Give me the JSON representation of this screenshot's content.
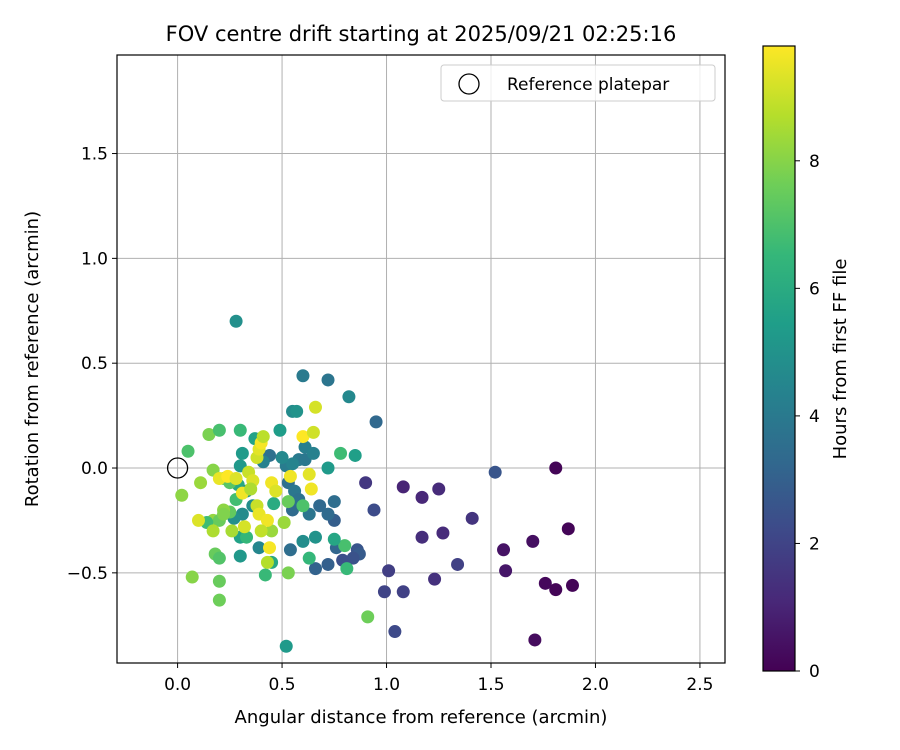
{
  "chart_data": {
    "type": "scatter",
    "title": "FOV centre drift starting at 2025/09/21 02:25:16",
    "xlabel": "Angular distance from reference (arcmin)",
    "ylabel": "Rotation from reference (arcmin)",
    "xlim": [
      -0.29,
      2.62
    ],
    "ylim": [
      -0.93,
      1.97
    ],
    "x_ticks": [
      0.0,
      0.5,
      1.0,
      1.5,
      2.0,
      2.5
    ],
    "x_tick_labels": [
      "0.0",
      "0.5",
      "1.0",
      "1.5",
      "2.0",
      "2.5"
    ],
    "y_ticks": [
      -0.5,
      0.0,
      0.5,
      1.0,
      1.5
    ],
    "y_tick_labels": [
      "−0.5",
      "0.0",
      "0.5",
      "1.0",
      "1.5"
    ],
    "grid": true,
    "legend": {
      "placement": "upper right",
      "entries": [
        {
          "label": "Reference platepar",
          "marker": "open-circle"
        }
      ]
    },
    "reference_point": {
      "x": 0.0,
      "y": 0.0
    },
    "colorbar": {
      "label": "Hours from first FF file",
      "colormap": "viridis",
      "min": 0,
      "max": 9.8,
      "ticks": [
        0,
        2,
        4,
        6,
        8
      ],
      "tick_labels": [
        "0",
        "2",
        "4",
        "6",
        "8"
      ],
      "stops": [
        "#440154",
        "#482878",
        "#3e4989",
        "#31688e",
        "#26828e",
        "#1f9e89",
        "#35b779",
        "#6ece58",
        "#b5de2b",
        "#fde725"
      ]
    },
    "points": [
      {
        "x": 1.81,
        "y": 0.0,
        "t": 0.1
      },
      {
        "x": 1.87,
        "y": -0.29,
        "t": 0.1
      },
      {
        "x": 1.76,
        "y": -0.55,
        "t": 0.2
      },
      {
        "x": 1.81,
        "y": -0.58,
        "t": 0.1
      },
      {
        "x": 1.89,
        "y": -0.56,
        "t": 0.1
      },
      {
        "x": 1.71,
        "y": -0.82,
        "t": 0.3
      },
      {
        "x": 1.7,
        "y": -0.35,
        "t": 0.4
      },
      {
        "x": 1.57,
        "y": -0.49,
        "t": 0.6
      },
      {
        "x": 1.56,
        "y": -0.39,
        "t": 0.5
      },
      {
        "x": 1.08,
        "y": -0.09,
        "t": 1.0
      },
      {
        "x": 1.17,
        "y": -0.14,
        "t": 1.1
      },
      {
        "x": 1.25,
        "y": -0.1,
        "t": 1.2
      },
      {
        "x": 1.17,
        "y": -0.33,
        "t": 1.3
      },
      {
        "x": 1.27,
        "y": -0.31,
        "t": 1.2
      },
      {
        "x": 1.23,
        "y": -0.53,
        "t": 1.4
      },
      {
        "x": 1.41,
        "y": -0.24,
        "t": 1.5
      },
      {
        "x": 1.34,
        "y": -0.46,
        "t": 1.9
      },
      {
        "x": 1.52,
        "y": -0.02,
        "t": 2.6
      },
      {
        "x": 1.01,
        "y": -0.49,
        "t": 1.8
      },
      {
        "x": 1.08,
        "y": -0.59,
        "t": 1.9
      },
      {
        "x": 0.99,
        "y": -0.59,
        "t": 2.0
      },
      {
        "x": 1.04,
        "y": -0.78,
        "t": 2.2
      },
      {
        "x": 0.9,
        "y": -0.07,
        "t": 1.6
      },
      {
        "x": 0.94,
        "y": -0.2,
        "t": 2.3
      },
      {
        "x": 0.95,
        "y": 0.22,
        "t": 3.3
      },
      {
        "x": 0.86,
        "y": -0.39,
        "t": 2.6
      },
      {
        "x": 0.87,
        "y": -0.41,
        "t": 2.8
      },
      {
        "x": 0.84,
        "y": -0.43,
        "t": 2.5
      },
      {
        "x": 0.79,
        "y": -0.44,
        "t": 2.4
      },
      {
        "x": 0.76,
        "y": -0.38,
        "t": 3.2
      },
      {
        "x": 0.75,
        "y": -0.25,
        "t": 2.9
      },
      {
        "x": 0.75,
        "y": -0.16,
        "t": 3.5
      },
      {
        "x": 0.72,
        "y": -0.46,
        "t": 3.0
      },
      {
        "x": 0.66,
        "y": -0.48,
        "t": 3.1
      },
      {
        "x": 0.68,
        "y": -0.18,
        "t": 3.3
      },
      {
        "x": 0.72,
        "y": -0.22,
        "t": 3.4
      },
      {
        "x": 0.54,
        "y": -0.39,
        "t": 3.5
      },
      {
        "x": 0.72,
        "y": 0.42,
        "t": 3.8
      },
      {
        "x": 0.82,
        "y": 0.34,
        "t": 4.6
      },
      {
        "x": 0.6,
        "y": 0.44,
        "t": 4.0
      },
      {
        "x": 0.55,
        "y": 0.27,
        "t": 4.7
      },
      {
        "x": 0.57,
        "y": 0.27,
        "t": 5.0
      },
      {
        "x": 0.28,
        "y": 0.7,
        "t": 4.9
      },
      {
        "x": 0.61,
        "y": 0.1,
        "t": 4.2
      },
      {
        "x": 0.58,
        "y": 0.04,
        "t": 4.0
      },
      {
        "x": 0.61,
        "y": 0.04,
        "t": 3.9
      },
      {
        "x": 0.65,
        "y": 0.07,
        "t": 4.3
      },
      {
        "x": 0.52,
        "y": 0.01,
        "t": 4.1
      },
      {
        "x": 0.55,
        "y": 0.02,
        "t": 4.4
      },
      {
        "x": 0.5,
        "y": 0.05,
        "t": 4.6
      },
      {
        "x": 0.53,
        "y": -0.07,
        "t": 3.6
      },
      {
        "x": 0.56,
        "y": -0.11,
        "t": 3.9
      },
      {
        "x": 0.58,
        "y": -0.15,
        "t": 3.7
      },
      {
        "x": 0.55,
        "y": -0.2,
        "t": 3.4
      },
      {
        "x": 0.63,
        "y": -0.22,
        "t": 3.8
      },
      {
        "x": 0.6,
        "y": -0.35,
        "t": 4.8
      },
      {
        "x": 0.66,
        "y": -0.33,
        "t": 5.0
      },
      {
        "x": 0.72,
        "y": 0.0,
        "t": 5.3
      },
      {
        "x": 0.85,
        "y": 0.06,
        "t": 5.5
      },
      {
        "x": 0.78,
        "y": 0.07,
        "t": 6.7
      },
      {
        "x": 0.8,
        "y": -0.37,
        "t": 6.9
      },
      {
        "x": 0.81,
        "y": -0.48,
        "t": 6.6
      },
      {
        "x": 0.75,
        "y": -0.34,
        "t": 5.8
      },
      {
        "x": 0.63,
        "y": -0.43,
        "t": 6.5
      },
      {
        "x": 0.49,
        "y": 0.18,
        "t": 5.4
      },
      {
        "x": 0.44,
        "y": 0.06,
        "t": 3.6
      },
      {
        "x": 0.41,
        "y": 0.03,
        "t": 4.3
      },
      {
        "x": 0.37,
        "y": 0.14,
        "t": 5.6
      },
      {
        "x": 0.31,
        "y": 0.07,
        "t": 5.3
      },
      {
        "x": 0.3,
        "y": 0.01,
        "t": 5.2
      },
      {
        "x": 0.29,
        "y": -0.08,
        "t": 5.9
      },
      {
        "x": 0.33,
        "y": -0.11,
        "t": 5.0
      },
      {
        "x": 0.36,
        "y": -0.18,
        "t": 4.8
      },
      {
        "x": 0.31,
        "y": -0.22,
        "t": 4.7
      },
      {
        "x": 0.27,
        "y": -0.24,
        "t": 4.9
      },
      {
        "x": 0.3,
        "y": -0.33,
        "t": 5.6
      },
      {
        "x": 0.39,
        "y": -0.38,
        "t": 4.5
      },
      {
        "x": 0.3,
        "y": -0.42,
        "t": 5.2
      },
      {
        "x": 0.45,
        "y": -0.45,
        "t": 5.9
      },
      {
        "x": 0.42,
        "y": -0.51,
        "t": 6.6
      },
      {
        "x": 0.52,
        "y": -0.85,
        "t": 5.3
      },
      {
        "x": 0.46,
        "y": -0.17,
        "t": 6.0
      },
      {
        "x": 0.53,
        "y": -0.16,
        "t": 7.5
      },
      {
        "x": 0.6,
        "y": -0.18,
        "t": 7.0
      },
      {
        "x": 0.51,
        "y": -0.26,
        "t": 8.3
      },
      {
        "x": 0.53,
        "y": -0.5,
        "t": 7.8
      },
      {
        "x": 0.91,
        "y": -0.71,
        "t": 7.6
      },
      {
        "x": 0.05,
        "y": 0.08,
        "t": 7.0
      },
      {
        "x": 0.15,
        "y": 0.16,
        "t": 7.8
      },
      {
        "x": 0.2,
        "y": 0.18,
        "t": 6.9
      },
      {
        "x": 0.3,
        "y": 0.18,
        "t": 6.6
      },
      {
        "x": 0.17,
        "y": -0.01,
        "t": 8.0
      },
      {
        "x": 0.11,
        "y": -0.07,
        "t": 8.3
      },
      {
        "x": 0.02,
        "y": -0.13,
        "t": 8.1
      },
      {
        "x": 0.22,
        "y": -0.05,
        "t": 7.6
      },
      {
        "x": 0.25,
        "y": -0.07,
        "t": 7.2
      },
      {
        "x": 0.28,
        "y": -0.15,
        "t": 6.8
      },
      {
        "x": 0.25,
        "y": -0.21,
        "t": 7.4
      },
      {
        "x": 0.22,
        "y": -0.2,
        "t": 8.1
      },
      {
        "x": 0.17,
        "y": -0.25,
        "t": 8.2
      },
      {
        "x": 0.2,
        "y": -0.25,
        "t": 7.5
      },
      {
        "x": 0.22,
        "y": -0.22,
        "t": 7.9
      },
      {
        "x": 0.14,
        "y": -0.26,
        "t": 6.7
      },
      {
        "x": 0.17,
        "y": -0.3,
        "t": 8.6
      },
      {
        "x": 0.26,
        "y": -0.3,
        "t": 8.5
      },
      {
        "x": 0.33,
        "y": -0.33,
        "t": 6.5
      },
      {
        "x": 0.45,
        "y": -0.3,
        "t": 8.3
      },
      {
        "x": 0.18,
        "y": -0.41,
        "t": 7.5
      },
      {
        "x": 0.2,
        "y": -0.43,
        "t": 7.1
      },
      {
        "x": 0.07,
        "y": -0.52,
        "t": 8.0
      },
      {
        "x": 0.2,
        "y": -0.54,
        "t": 7.5
      },
      {
        "x": 0.2,
        "y": -0.63,
        "t": 7.6
      },
      {
        "x": 0.1,
        "y": -0.25,
        "t": 9.3
      },
      {
        "x": 0.2,
        "y": -0.05,
        "t": 9.5
      },
      {
        "x": 0.24,
        "y": -0.04,
        "t": 9.8
      },
      {
        "x": 0.28,
        "y": -0.05,
        "t": 9.3
      },
      {
        "x": 0.31,
        "y": -0.12,
        "t": 9.6
      },
      {
        "x": 0.34,
        "y": -0.02,
        "t": 9.0
      },
      {
        "x": 0.38,
        "y": 0.05,
        "t": 9.1
      },
      {
        "x": 0.39,
        "y": 0.09,
        "t": 9.4
      },
      {
        "x": 0.4,
        "y": 0.12,
        "t": 9.7
      },
      {
        "x": 0.41,
        "y": 0.15,
        "t": 8.8
      },
      {
        "x": 0.36,
        "y": -0.06,
        "t": 9.3
      },
      {
        "x": 0.35,
        "y": -0.1,
        "t": 8.6
      },
      {
        "x": 0.38,
        "y": -0.18,
        "t": 9.0
      },
      {
        "x": 0.39,
        "y": -0.22,
        "t": 9.5
      },
      {
        "x": 0.43,
        "y": -0.25,
        "t": 9.6
      },
      {
        "x": 0.32,
        "y": -0.28,
        "t": 9.2
      },
      {
        "x": 0.4,
        "y": -0.3,
        "t": 8.9
      },
      {
        "x": 0.45,
        "y": -0.07,
        "t": 9.6
      },
      {
        "x": 0.47,
        "y": -0.11,
        "t": 9.3
      },
      {
        "x": 0.44,
        "y": -0.38,
        "t": 9.7
      },
      {
        "x": 0.43,
        "y": -0.45,
        "t": 8.7
      },
      {
        "x": 0.54,
        "y": -0.04,
        "t": 9.6
      },
      {
        "x": 0.6,
        "y": 0.15,
        "t": 9.8
      },
      {
        "x": 0.63,
        "y": -0.03,
        "t": 9.4
      },
      {
        "x": 0.64,
        "y": -0.1,
        "t": 9.6
      },
      {
        "x": 0.66,
        "y": 0.29,
        "t": 9.2
      },
      {
        "x": 0.65,
        "y": 0.17,
        "t": 9.1
      }
    ]
  }
}
